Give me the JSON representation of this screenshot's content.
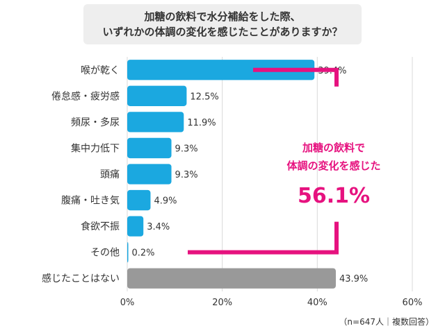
{
  "title": {
    "line1": "加糖の飲料で水分補給をした際、",
    "line2": "いずれかの体調の変化を感じたことがありますか？"
  },
  "chart_data": {
    "type": "bar",
    "orientation": "horizontal",
    "categories": [
      "喉が乾く",
      "倦怠感・疲労感",
      "頻尿・多尿",
      "集中力低下",
      "頭痛",
      "腹痛・吐き気",
      "食欲不振",
      "その他",
      "感じたことはない"
    ],
    "values": [
      39.4,
      12.5,
      11.9,
      9.3,
      9.3,
      4.9,
      3.4,
      0.2,
      43.9
    ],
    "value_labels": [
      "39.4%",
      "12.5%",
      "11.9%",
      "9.3%",
      "9.3%",
      "4.9%",
      "3.4%",
      "0.2%",
      "43.9%"
    ],
    "bar_colors": [
      "#1ba8e0",
      "#1ba8e0",
      "#1ba8e0",
      "#1ba8e0",
      "#1ba8e0",
      "#1ba8e0",
      "#1ba8e0",
      "#1ba8e0",
      "#999999"
    ],
    "xlim": [
      0,
      60
    ],
    "xticks": [
      "0%",
      "20%",
      "40%",
      "60%"
    ],
    "grid": true,
    "annotation": {
      "line1": "加糖の飲料で",
      "line2": "体調の変化を感じた",
      "value": "56.1%",
      "color": "#e6127f"
    },
    "note": "（n=647人｜複数回答）"
  }
}
